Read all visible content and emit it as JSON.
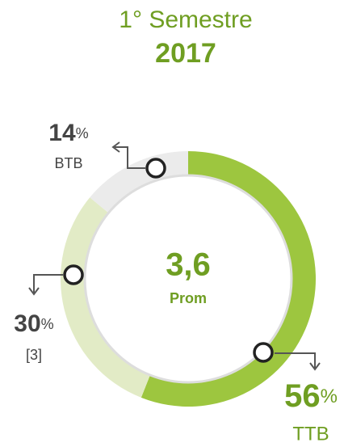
{
  "chart_data": {
    "type": "donut",
    "title": "1° Semestre",
    "subtitle": "2017",
    "categories": [
      "TTB",
      "[3]",
      "BTB"
    ],
    "values": [
      56,
      30,
      14
    ],
    "unit": "%",
    "colors": [
      "#9dc63f",
      "#e2ebc6",
      "#ebebeb"
    ],
    "center_label": "3,6",
    "center_sublabel": "Prom"
  }
}
